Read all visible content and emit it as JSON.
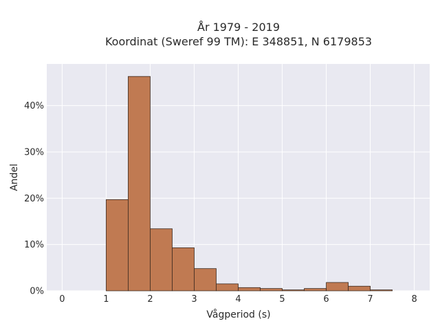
{
  "chart_data": {
    "type": "bar",
    "title_lines": [
      "År 1979 - 2019",
      "Koordinat (Sweref 99 TM): E 348851, N 6179853"
    ],
    "xlabel": "Vågperiod (s)",
    "ylabel": "Andel",
    "xlim": [
      -0.35,
      8.35
    ],
    "ylim": [
      0,
      0.49
    ],
    "x_ticks": [
      0,
      1,
      2,
      3,
      4,
      5,
      6,
      7,
      8
    ],
    "x_tick_labels": [
      "0",
      "1",
      "2",
      "3",
      "4",
      "5",
      "6",
      "7",
      "8"
    ],
    "y_ticks": [
      0,
      0.1,
      0.2,
      0.3,
      0.4
    ],
    "y_tick_labels": [
      "0%",
      "10%",
      "20%",
      "30%",
      "40%"
    ],
    "bin_width": 0.5,
    "bins": [
      {
        "x0": 1.0,
        "x1": 1.5,
        "value": 0.197
      },
      {
        "x0": 1.5,
        "x1": 2.0,
        "value": 0.463
      },
      {
        "x0": 2.0,
        "x1": 2.5,
        "value": 0.134
      },
      {
        "x0": 2.5,
        "x1": 3.0,
        "value": 0.093
      },
      {
        "x0": 3.0,
        "x1": 3.5,
        "value": 0.048
      },
      {
        "x0": 3.5,
        "x1": 4.0,
        "value": 0.015
      },
      {
        "x0": 4.0,
        "x1": 4.5,
        "value": 0.007
      },
      {
        "x0": 4.5,
        "x1": 5.0,
        "value": 0.005
      },
      {
        "x0": 5.0,
        "x1": 5.5,
        "value": 0.002
      },
      {
        "x0": 5.5,
        "x1": 6.0,
        "value": 0.005
      },
      {
        "x0": 6.0,
        "x1": 6.5,
        "value": 0.018
      },
      {
        "x0": 6.5,
        "x1": 7.0,
        "value": 0.01
      },
      {
        "x0": 7.0,
        "x1": 7.5,
        "value": 0.002
      }
    ],
    "grid": true,
    "colors": {
      "bar_fill": "#c07a52",
      "bar_edge": "#3a2a20",
      "plot_bg": "#e9e9f1",
      "grid": "#ffffff"
    }
  }
}
